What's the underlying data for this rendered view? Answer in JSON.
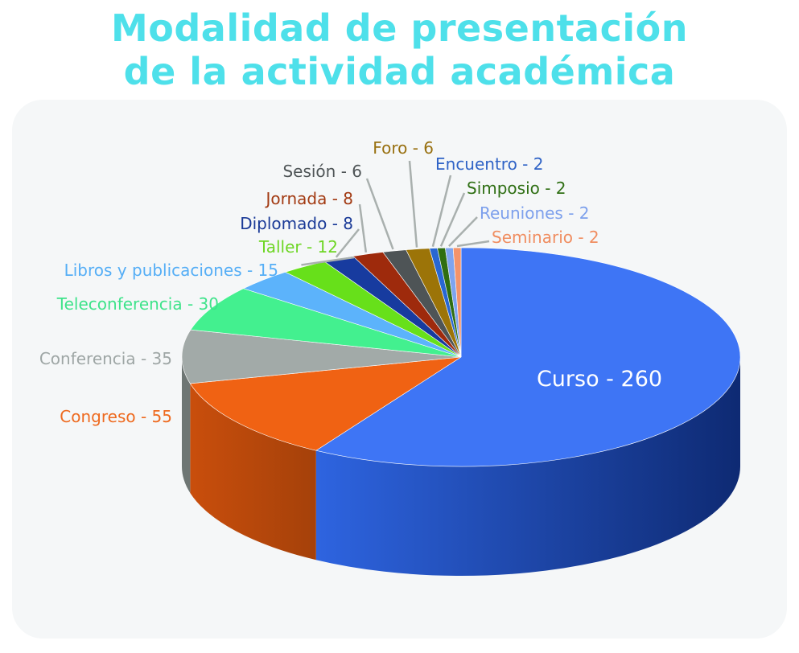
{
  "chart_data": {
    "type": "pie",
    "title_lines": [
      "Modalidad de presentación",
      "de la actividad académica"
    ],
    "slices": [
      {
        "name": "Curso",
        "value": 260,
        "label": "Curso - 260",
        "color": "#3e75f5",
        "side_dark": "#0e2a73",
        "text_color": "#ffffff"
      },
      {
        "name": "Congreso",
        "value": 55,
        "label": "Congreso - 55",
        "color": "#f06213",
        "side_dark": "#a5410a",
        "text_color": "#ee6a1f"
      },
      {
        "name": "Conferencia",
        "value": 35,
        "label": "Conferencia - 35",
        "color": "#a2aaa8",
        "side_dark": "#6e7674",
        "text_color": "#9ea6a5"
      },
      {
        "name": "Teleconferencia",
        "value": 30,
        "label": "Teleconferencia - 30",
        "color": "#43f08f",
        "side_dark": "#25a35d",
        "text_color": "#3ee38a"
      },
      {
        "name": "Libros y publicaciones",
        "value": 15,
        "label": "Libros y publicaciones - 15",
        "color": "#5cb3fb",
        "side_dark": "#3a7bb5",
        "text_color": "#55aef6"
      },
      {
        "name": "Taller",
        "value": 12,
        "label": "Taller - 12",
        "color": "#67e01a",
        "side_dark": "#449a10",
        "text_color": "#6ed624"
      },
      {
        "name": "Diplomado",
        "value": 8,
        "label": "Diplomado - 8",
        "color": "#173b9f",
        "side_dark": "#0b1f5c",
        "text_color": "#1a3a97"
      },
      {
        "name": "Jornada",
        "value": 8,
        "label": "Jornada - 8",
        "color": "#9e2a0c",
        "side_dark": "#651a07",
        "text_color": "#a23a12"
      },
      {
        "name": "Sesión",
        "value": 6,
        "label": "Sesión - 6",
        "color": "#4e5456",
        "side_dark": "#2e3233",
        "text_color": "#4f5557"
      },
      {
        "name": "Foro",
        "value": 6,
        "label": "Foro - 6",
        "color": "#9c7408",
        "side_dark": "#654a05",
        "text_color": "#987010"
      },
      {
        "name": "Encuentro",
        "value": 2,
        "label": "Encuentro - 2",
        "color": "#2867d3",
        "side_dark": "#173e82",
        "text_color": "#2f63c6"
      },
      {
        "name": "Simposio",
        "value": 2,
        "label": "Simposio - 2",
        "color": "#2f6e11",
        "side_dark": "#1c430a",
        "text_color": "#2f6f14"
      },
      {
        "name": "Reuniones",
        "value": 2,
        "label": "Reuniones - 2",
        "color": "#7ea4ef",
        "side_dark": "#4e6fae",
        "text_color": "#7da0ec"
      },
      {
        "name": "Seminario",
        "value": 2,
        "label": "Seminario - 2",
        "color": "#f3936a",
        "side_dark": "#b36343",
        "text_color": "#f08d60"
      }
    ],
    "start_angle_deg": -90,
    "direction": "clockwise",
    "style": "3d",
    "legend": "none",
    "labels": "outside-with-leader-lines"
  },
  "colors": {
    "title": "#4ee0ea",
    "panel_background": "#f5f7f8",
    "leader_line": "#a9b0ae"
  }
}
